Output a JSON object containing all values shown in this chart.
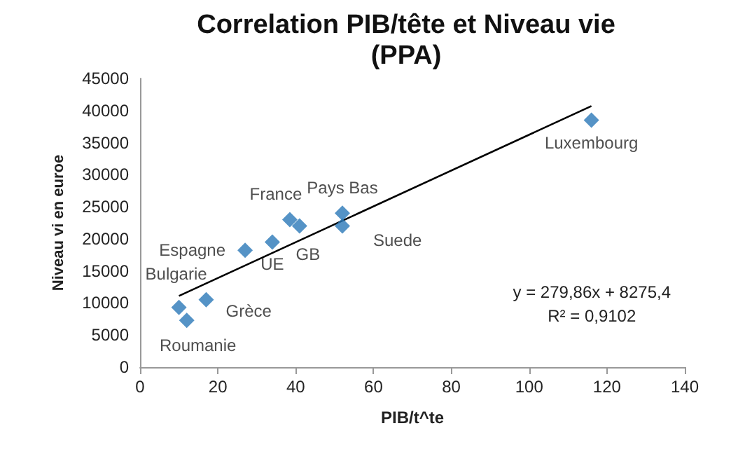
{
  "chart_data": {
    "type": "scatter",
    "title": "Correlation PIB/tête et Niveau vie\n(PPA)",
    "xlabel": "PIB/t^te",
    "ylabel": "Niveau vi en euroe",
    "xlim": [
      0,
      140
    ],
    "xticks": [
      0,
      20,
      40,
      60,
      80,
      100,
      120,
      140
    ],
    "ylim": [
      0,
      45000
    ],
    "yticks": [
      0,
      5000,
      10000,
      15000,
      20000,
      25000,
      30000,
      35000,
      40000,
      45000
    ],
    "grid": false,
    "marker": "diamond",
    "series": [
      {
        "color": "#2a78b8",
        "x": [
          116,
          52,
          52,
          38.5,
          41,
          27,
          34,
          10,
          17,
          12
        ],
        "values": [
          38500,
          24000,
          22000,
          23000,
          22000,
          18200,
          19500,
          9300,
          10500,
          7300
        ]
      },
      {
        "type": "line",
        "color": "#000000",
        "marker": "none",
        "x": [
          10,
          116
        ],
        "values": [
          11100,
          40700
        ]
      }
    ],
    "annotations": [
      {
        "text": "Luxembourg",
        "x": 116,
        "y": 38500
      },
      {
        "text": "Pays Bas",
        "x": 52,
        "y": 24000
      },
      {
        "text": "Suede",
        "x": 52,
        "y": 22000
      },
      {
        "text": "France",
        "x": 38.5,
        "y": 23000
      },
      {
        "text": "GB",
        "x": 41,
        "y": 22000
      },
      {
        "text": "Espagne",
        "x": 27,
        "y": 18200
      },
      {
        "text": "UE",
        "x": 34,
        "y": 19500
      },
      {
        "text": "Bulgarie",
        "x": 10,
        "y": 9300
      },
      {
        "text": "Grèce",
        "x": 17,
        "y": 10500
      },
      {
        "text": "Roumanie",
        "x": 12,
        "y": 7300
      },
      "y = 279,86x + 8275,4\nR² = 0,9102"
    ]
  }
}
